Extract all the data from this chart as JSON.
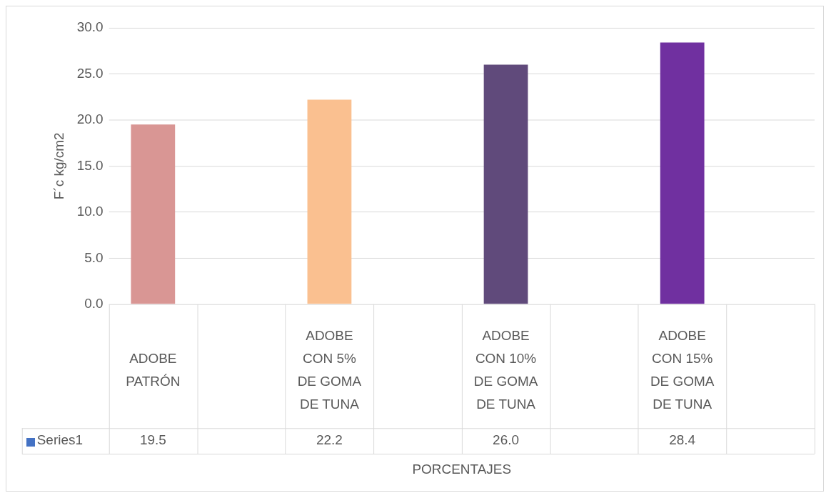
{
  "chart_data": {
    "type": "bar",
    "xlabel": "PORCENTAJES",
    "ylabel": "F´c kg/cm2",
    "categories": [
      "ADOBE PATRÓN",
      null,
      "ADOBE CON 5% DE GOMA DE TUNA",
      null,
      "ADOBE CON 10% DE GOMA DE TUNA",
      null,
      "ADOBE CON 15% DE GOMA DE TUNA",
      null
    ],
    "series": [
      {
        "name": "Series1",
        "color": "#4472c4",
        "colors": [
          "#d99694",
          null,
          "#fac090",
          null,
          "#604a7b",
          null,
          "#7030a0",
          null
        ],
        "values": [
          19.5,
          null,
          22.2,
          null,
          26.0,
          null,
          28.4,
          null
        ],
        "value_labels": [
          "19.5",
          null,
          "22.2",
          null,
          "26.0",
          null,
          "28.4",
          null
        ]
      }
    ],
    "ylim": [
      0,
      30
    ],
    "yticks": [
      {
        "value": 0,
        "label": "0.0"
      },
      {
        "value": 5,
        "label": "5.0"
      },
      {
        "value": 10,
        "label": "10.0"
      },
      {
        "value": 15,
        "label": "15.0"
      },
      {
        "value": 20,
        "label": "20.0"
      },
      {
        "value": 25,
        "label": "25.0"
      },
      {
        "value": 30,
        "label": "30.0"
      }
    ],
    "grid": "y",
    "legend": "bottom"
  }
}
